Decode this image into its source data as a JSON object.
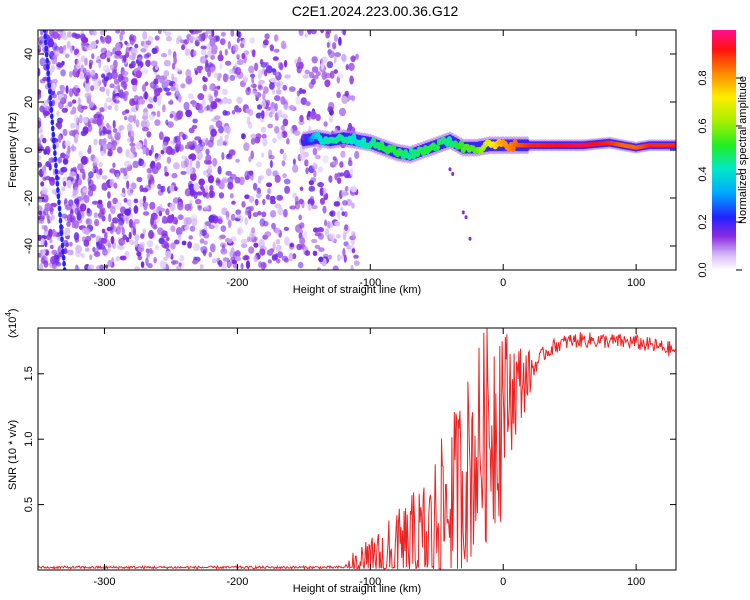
{
  "title": "C2E1.2024.223.00.36.G12",
  "chart_data": [
    {
      "type": "heatmap",
      "xlabel": "Height of straight line (km)",
      "ylabel": "Frequency (Hz)",
      "xlim": [
        -350,
        130
      ],
      "ylim": [
        -50,
        50
      ],
      "x_ticks": [
        -300,
        -200,
        -100,
        0,
        100
      ],
      "y_ticks": [
        -40,
        -20,
        0,
        20,
        40
      ],
      "colorbar": {
        "label": "Normalized spectral amplitude",
        "range": [
          0,
          1
        ],
        "ticks": [
          "0.0",
          "0.2",
          "0.4",
          "0.6",
          "0.8"
        ]
      },
      "features": {
        "noise_region_x": [
          -350,
          -120
        ],
        "signal_ridge": {
          "x": [
            -150,
            -140,
            -130,
            -120,
            -110,
            -100,
            -90,
            -80,
            -70,
            -60,
            -50,
            -40,
            -30,
            -20,
            -10,
            0,
            20,
            40,
            60,
            80,
            90,
            100,
            110,
            130
          ],
          "freq_hz": [
            4,
            5,
            4,
            5,
            4,
            3,
            1,
            -1,
            -2,
            0,
            2,
            4,
            1,
            1,
            2,
            2,
            2,
            2,
            2,
            3,
            2,
            1,
            2,
            2
          ],
          "amplitude": [
            0.15,
            0.4,
            0.45,
            0.45,
            0.4,
            0.45,
            0.5,
            0.5,
            0.45,
            0.5,
            0.5,
            0.45,
            0.55,
            0.55,
            0.7,
            0.8,
            0.9,
            0.92,
            0.95,
            0.9,
            0.85,
            0.85,
            0.9,
            0.9
          ]
        }
      }
    },
    {
      "type": "line",
      "xlabel": "Height of straight line (km)",
      "ylabel": "SNR (10 * v/v)",
      "y_multiplier": "(x10",
      "y_multiplier_exp": "4",
      "xlim": [
        -350,
        130
      ],
      "ylim": [
        0,
        1.85
      ],
      "x_ticks": [
        -300,
        -200,
        -100,
        0,
        100
      ],
      "y_ticks": [
        "0.5",
        "1.0",
        "1.5"
      ],
      "series": [
        {
          "color": "#ee2222",
          "x": [
            -350,
            -300,
            -250,
            -200,
            -150,
            -120,
            -100,
            -80,
            -60,
            -50,
            -40,
            -30,
            -20,
            -10,
            0,
            10,
            20,
            30,
            40,
            50,
            60,
            80,
            100,
            110,
            120,
            130
          ],
          "values": [
            0.02,
            0.02,
            0.02,
            0.02,
            0.02,
            0.02,
            0.05,
            0.1,
            0.2,
            0.35,
            0.5,
            0.7,
            0.9,
            1.1,
            1.3,
            1.4,
            1.5,
            1.65,
            1.72,
            1.75,
            1.76,
            1.75,
            1.74,
            1.72,
            1.7,
            1.68
          ]
        }
      ]
    }
  ]
}
